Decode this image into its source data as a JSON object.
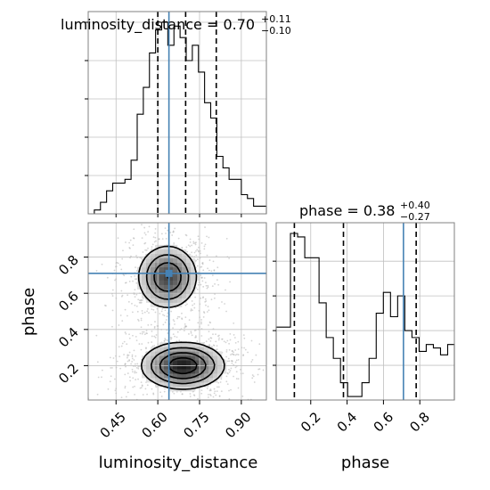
{
  "chart_data": {
    "type": "corner",
    "parameters": [
      "luminosity_distance",
      "phase"
    ],
    "colors": {
      "truth": "#4682b4",
      "hist": "#000000",
      "grid": "#c0c0c0",
      "scatter": "#b0b0b0"
    },
    "grid": true,
    "luminosity_distance": {
      "title": {
        "main": "luminosity_distance = 0.70",
        "upper": "+0.11",
        "lower": "−0.10"
      },
      "xlabel": "luminosity_distance",
      "range": [
        0.35,
        0.99
      ],
      "ticks": [
        0.45,
        0.6,
        0.75,
        0.9
      ],
      "tick_labels": [
        "0.45",
        "0.60",
        "0.75",
        "0.90"
      ],
      "quantiles": [
        0.6,
        0.7,
        0.81
      ],
      "truth": 0.64,
      "hist": {
        "edges": [
          0.35,
          0.372,
          0.394,
          0.416,
          0.438,
          0.46,
          0.482,
          0.504,
          0.526,
          0.548,
          0.57,
          0.592,
          0.614,
          0.636,
          0.658,
          0.68,
          0.702,
          0.724,
          0.746,
          0.768,
          0.79,
          0.812,
          0.834,
          0.856,
          0.878,
          0.9,
          0.922,
          0.944,
          0.966,
          0.99
        ],
        "values": [
          0,
          1,
          3,
          6,
          8,
          8,
          9,
          14,
          26,
          33,
          42,
          48,
          50,
          44,
          49,
          46,
          40,
          44,
          37,
          29,
          25,
          15,
          12,
          9,
          9,
          5,
          4,
          2,
          2
        ]
      }
    },
    "phase": {
      "title": {
        "main": "phase = 0.38",
        "upper": "+0.40",
        "lower": "−0.27"
      },
      "xlabel": "phase",
      "ylabel": "phase",
      "range": [
        0.01,
        0.99
      ],
      "ticks": [
        0.2,
        0.4,
        0.6,
        0.8
      ],
      "tick_labels": [
        "0.2",
        "0.4",
        "0.6",
        "0.8"
      ],
      "quantiles": [
        0.11,
        0.38,
        0.78
      ],
      "truth": 0.71,
      "hist": {
        "edges": [
          0.01,
          0.0493,
          0.0886,
          0.1279,
          0.1672,
          0.2065,
          0.2458,
          0.2851,
          0.3244,
          0.3637,
          0.403,
          0.4423,
          0.4816,
          0.5209,
          0.5602,
          0.5995,
          0.6388,
          0.6781,
          0.7174,
          0.7567,
          0.796,
          0.8353,
          0.8746,
          0.9139,
          0.9532,
          0.99
        ],
        "values": [
          21,
          21,
          48,
          47,
          41,
          41,
          28,
          18,
          12,
          5,
          1,
          1,
          5,
          12,
          25,
          31,
          24,
          30,
          20,
          18,
          14,
          16,
          15,
          13,
          16
        ]
      }
    },
    "joint": {
      "x_param": "luminosity_distance",
      "y_param": "phase",
      "modes": [
        {
          "x": 0.69,
          "y": 0.2,
          "sx": 0.075,
          "sy": 0.065,
          "weight": 0.55
        },
        {
          "x": 0.635,
          "y": 0.69,
          "sx": 0.055,
          "sy": 0.09,
          "weight": 0.45
        }
      ],
      "truth_point": [
        0.64,
        0.71
      ]
    }
  }
}
